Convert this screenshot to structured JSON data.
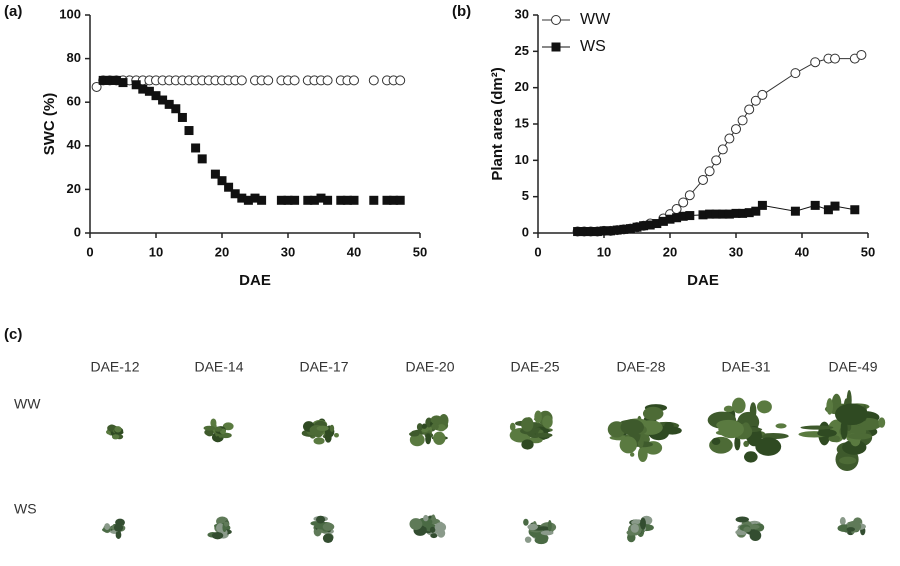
{
  "chart_data": [
    {
      "type": "scatter",
      "panel_label": "(a)",
      "x_label": "DAE",
      "y_label": "SWC (%)",
      "xlim": [
        0,
        50
      ],
      "xticks": [
        0,
        10,
        20,
        30,
        40,
        50
      ],
      "ylim": [
        0,
        100
      ],
      "yticks": [
        0,
        20,
        40,
        60,
        80,
        100
      ],
      "series": [
        {
          "marker": "open-circle",
          "color": "#333333",
          "x": [
            1,
            2,
            3,
            4,
            5,
            6,
            7,
            8,
            9,
            10,
            11,
            12,
            13,
            14,
            15,
            16,
            17,
            18,
            19,
            20,
            21,
            22,
            23,
            25,
            26,
            27,
            29,
            30,
            31,
            33,
            34,
            35,
            36,
            38,
            39,
            40,
            43,
            45,
            46,
            47
          ],
          "values": [
            67,
            70,
            70,
            70,
            70,
            70,
            70,
            70,
            70,
            70,
            70,
            70,
            70,
            70,
            70,
            70,
            70,
            70,
            70,
            70,
            70,
            70,
            70,
            70,
            70,
            70,
            70,
            70,
            70,
            70,
            70,
            70,
            70,
            70,
            70,
            70,
            70,
            70,
            70,
            70
          ]
        },
        {
          "marker": "filled-square",
          "color": "#111111",
          "x": [
            2,
            3,
            4,
            5,
            7,
            8,
            9,
            10,
            11,
            12,
            13,
            14,
            15,
            16,
            17,
            19,
            20,
            21,
            22,
            23,
            24,
            25,
            26,
            29,
            30,
            31,
            33,
            34,
            35,
            36,
            38,
            39,
            40,
            43,
            45,
            46,
            47
          ],
          "values": [
            70,
            70,
            70,
            69,
            68,
            66,
            65,
            63,
            61,
            59,
            57,
            53,
            47,
            39,
            34,
            27,
            24,
            21,
            18,
            16,
            15,
            16,
            15,
            15,
            15,
            15,
            15,
            15,
            16,
            15,
            15,
            15,
            15,
            15,
            15,
            15,
            15
          ]
        }
      ]
    },
    {
      "type": "scatter",
      "panel_label": "(b)",
      "x_label": "DAE",
      "y_label": "Plant area (dm²)",
      "line": true,
      "xlim": [
        0,
        50
      ],
      "xticks": [
        0,
        10,
        20,
        30,
        40,
        50
      ],
      "ylim": [
        0,
        30
      ],
      "yticks": [
        0,
        5,
        10,
        15,
        20,
        25,
        30
      ],
      "series": [
        {
          "name": "WW",
          "marker": "open-circle",
          "color": "#333333",
          "x": [
            6,
            7,
            8,
            9,
            10,
            11,
            12,
            13,
            14,
            15,
            16,
            17,
            19,
            20,
            21,
            22,
            23,
            25,
            26,
            27,
            28,
            29,
            30,
            31,
            32,
            33,
            34,
            39,
            42,
            44,
            45,
            48,
            49
          ],
          "values": [
            0.2,
            0.2,
            0.2,
            0.2,
            0.3,
            0.3,
            0.4,
            0.5,
            0.6,
            0.8,
            1.0,
            1.3,
            2.0,
            2.6,
            3.3,
            4.2,
            5.2,
            7.3,
            8.5,
            10,
            11.5,
            13,
            14.3,
            15.5,
            17,
            18.2,
            19,
            22,
            23.5,
            24,
            24,
            24,
            24.5
          ]
        },
        {
          "name": "WS",
          "marker": "filled-square",
          "color": "#111111",
          "x": [
            6,
            7,
            8,
            9,
            10,
            11,
            12,
            13,
            14,
            15,
            16,
            17,
            18,
            19,
            20,
            21,
            22,
            23,
            25,
            26,
            27,
            28,
            29,
            30,
            31,
            32,
            33,
            34,
            39,
            42,
            44,
            45,
            48
          ],
          "values": [
            0.2,
            0.2,
            0.2,
            0.2,
            0.3,
            0.3,
            0.4,
            0.5,
            0.6,
            0.8,
            1.0,
            1.1,
            1.3,
            1.6,
            1.9,
            2.1,
            2.3,
            2.4,
            2.5,
            2.6,
            2.6,
            2.6,
            2.6,
            2.7,
            2.7,
            2.8,
            3.0,
            3.8,
            3.0,
            3.8,
            3.2,
            3.7,
            3.2
          ]
        }
      ]
    }
  ],
  "photos": {
    "panel_label": "(c)",
    "columns": [
      "DAE-12",
      "DAE-14",
      "DAE-17",
      "DAE-20",
      "DAE-25",
      "DAE-28",
      "DAE-31",
      "DAE-49"
    ],
    "rows": [
      "WW",
      "WS"
    ]
  }
}
